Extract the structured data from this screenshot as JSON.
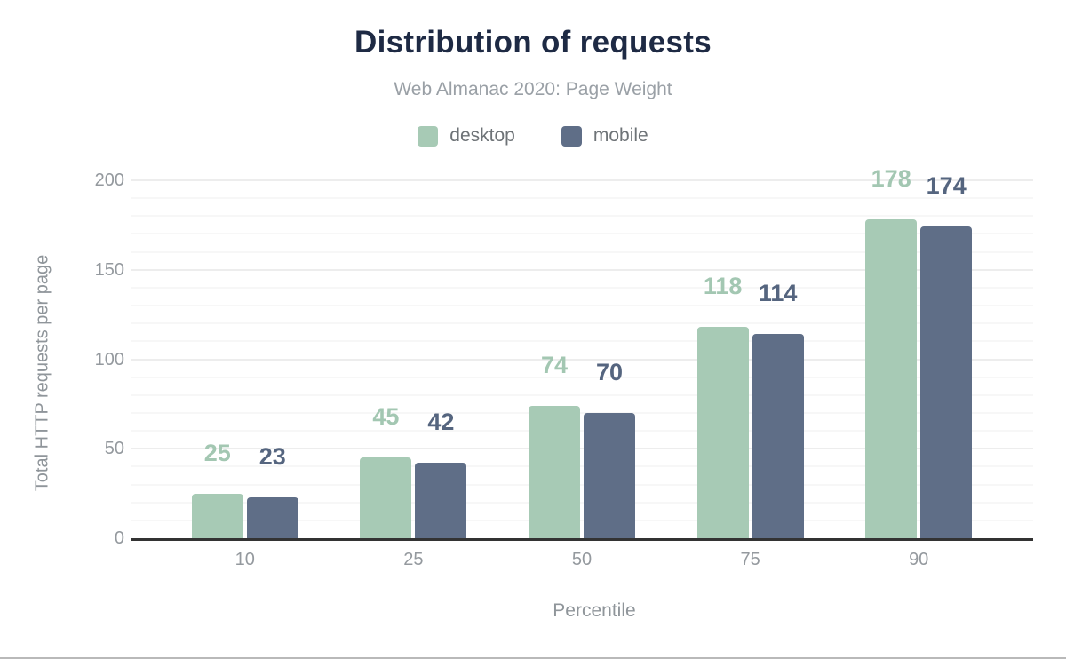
{
  "page": {
    "title": "Distribution of requests",
    "subtitle": "Web Almanac 2020: Page Weight",
    "x_axis_title": "Percentile",
    "y_axis_title": "Total HTTP requests per page"
  },
  "legend": {
    "items": [
      {
        "label": "desktop",
        "color": "#a7cab5"
      },
      {
        "label": "mobile",
        "color": "#5f6e87"
      }
    ]
  },
  "colors": {
    "title": "#1e2a44",
    "subtitle": "#9aa0a6",
    "legend_text": "#6e7377",
    "tick_text": "#94999e",
    "axis_title_text": "#8f959a",
    "axis_line": "#333333",
    "grid_major": "#ededed",
    "grid_minor": "#f7f7f7",
    "desktop_bar": "#a7cab5",
    "mobile_bar": "#5f6e87",
    "desktop_value_label": "#a3c7b2",
    "mobile_value_label": "#55657f"
  },
  "chart_data": {
    "type": "bar",
    "title": "Distribution of requests",
    "subtitle": "Web Almanac 2020: Page Weight",
    "xlabel": "Percentile",
    "ylabel": "Total HTTP requests per page",
    "categories": [
      "10",
      "25",
      "50",
      "75",
      "90"
    ],
    "series": [
      {
        "name": "desktop",
        "color": "#a7cab5",
        "values": [
          25,
          45,
          74,
          118,
          178
        ]
      },
      {
        "name": "mobile",
        "color": "#5f6e87",
        "values": [
          23,
          42,
          70,
          114,
          174
        ]
      }
    ],
    "ylim": [
      0,
      200
    ],
    "y_ticks": [
      0,
      50,
      100,
      150,
      200
    ],
    "grid_minor_step": 10,
    "grid": true,
    "legend_position": "top",
    "data_labels": true
  }
}
